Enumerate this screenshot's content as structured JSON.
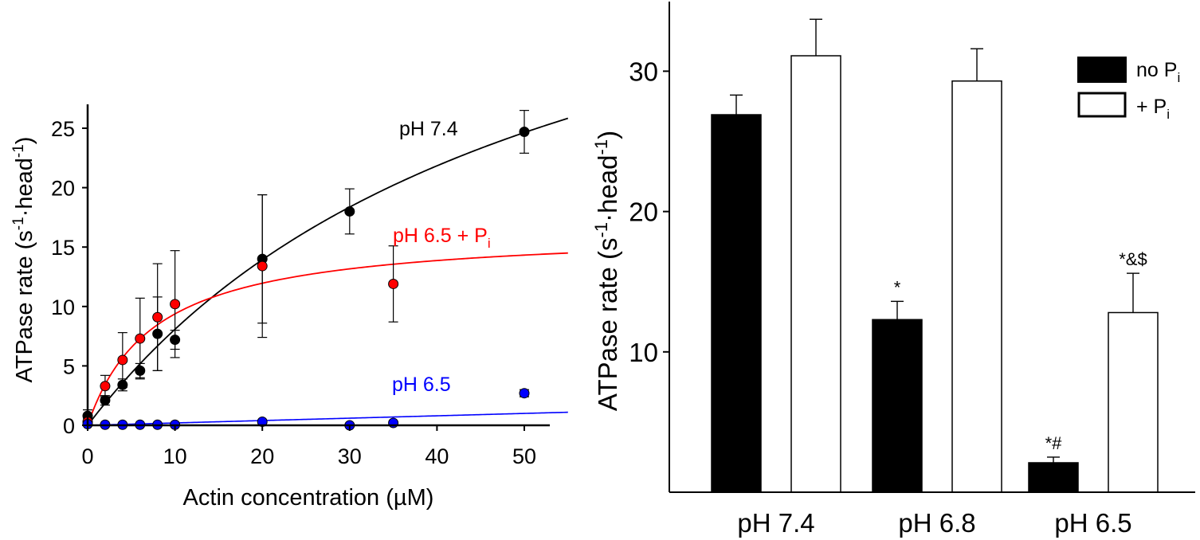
{
  "chart_data": [
    {
      "type": "scatter",
      "xlabel": "Actin concentration (µM)",
      "ylabel_main": "ATPase rate (s",
      "ylabel_sup1": "-1",
      "ylabel_dot": "·head",
      "ylabel_sup2": "-1",
      "ylabel_close": ")",
      "xlim": [
        0,
        55
      ],
      "ylim": [
        0,
        27
      ],
      "xticks": [
        0,
        10,
        20,
        30,
        40,
        50
      ],
      "yticks": [
        0,
        5,
        10,
        15,
        20,
        25
      ],
      "series": [
        {
          "name": "pH 7.4",
          "label": "pH 7.4",
          "color": "#000000",
          "x": [
            0,
            2,
            4,
            6,
            8,
            10,
            20,
            30,
            50
          ],
          "y": [
            0.8,
            2.1,
            3.4,
            4.6,
            7.7,
            7.2,
            14.0,
            18.0,
            24.7
          ],
          "err": [
            0.5,
            0.4,
            0.5,
            0.6,
            3.1,
            0.8,
            5.4,
            1.9,
            1.8
          ],
          "fit": {
            "vmax": 50.5,
            "km": 52.5
          }
        },
        {
          "name": "pH 6.5 + Pi",
          "label": "pH 6.5 + P",
          "label_sub": "i",
          "color": "#ff0000",
          "x": [
            0,
            2,
            4,
            6,
            8,
            10,
            20,
            35
          ],
          "y": [
            0.3,
            3.3,
            5.5,
            7.3,
            9.1,
            10.2,
            13.4,
            11.9
          ],
          "err": [
            0.3,
            0.9,
            2.3,
            3.4,
            4.5,
            4.5,
            6.0,
            3.2
          ],
          "fit": {
            "vmax": 16.5,
            "km": 7.6
          }
        },
        {
          "name": "pH 6.5",
          "label": "pH 6.5",
          "color": "#0000ff",
          "x": [
            0,
            2,
            4,
            6,
            8,
            10,
            20,
            30,
            35,
            50
          ],
          "y": [
            0.1,
            0.05,
            0.05,
            0.05,
            0.05,
            0.05,
            0.3,
            0.0,
            0.2,
            2.7
          ],
          "err": [
            0,
            0,
            0,
            0,
            0,
            0,
            0,
            0,
            0,
            0.3
          ],
          "fit": {
            "slope": 0.02
          }
        }
      ]
    },
    {
      "type": "bar",
      "categories": [
        "pH 7.4",
        "pH 6.8",
        "pH 6.5"
      ],
      "ylabel_main": "ATPase rate (s",
      "ylabel_sup1": "-1",
      "ylabel_dot": "·head",
      "ylabel_sup2": "-1",
      "ylabel_close": ")",
      "ylim": [
        0,
        35
      ],
      "yticks": [
        10,
        20,
        30
      ],
      "series": [
        {
          "name": "no Pi",
          "label": "no P",
          "label_sub": "i",
          "fill": "#000000",
          "values": [
            26.9,
            12.3,
            2.1
          ],
          "err": [
            1.4,
            1.3,
            0.4
          ]
        },
        {
          "name": "+ Pi",
          "label": "+ P",
          "label_sub": "i",
          "fill": "#ffffff",
          "values": [
            31.1,
            29.3,
            12.8
          ],
          "err": [
            2.6,
            2.3,
            2.8
          ]
        }
      ],
      "annotations": [
        {
          "series": 0,
          "category": 1,
          "text": "*"
        },
        {
          "series": 0,
          "category": 2,
          "text": "*#"
        },
        {
          "series": 1,
          "category": 2,
          "text": "*&$"
        }
      ]
    }
  ]
}
